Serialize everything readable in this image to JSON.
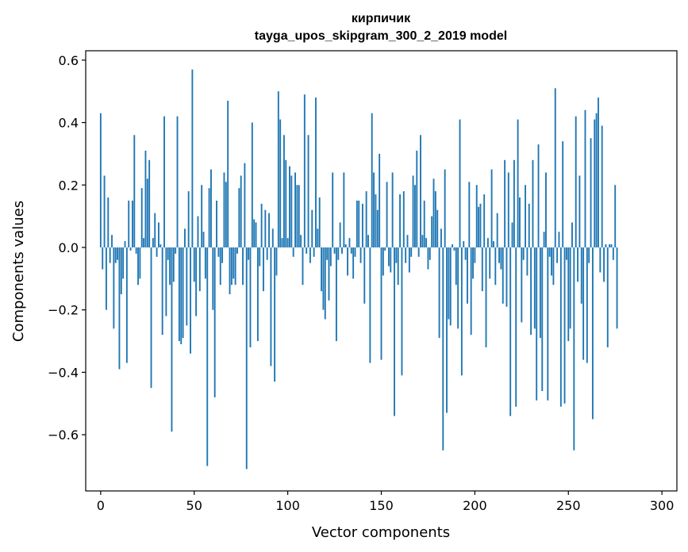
{
  "chart_data": {
    "type": "bar",
    "title_line1": "кирпичик",
    "title_line2": "tayga_upos_skipgram_300_2_2019 model",
    "xlabel": "Vector components",
    "ylabel": "Components values",
    "bar_color": "#1f77b4",
    "xlim": [
      -8,
      308
    ],
    "ylim": [
      -0.78,
      0.63
    ],
    "x_ticks": [
      0,
      50,
      100,
      150,
      200,
      250,
      300
    ],
    "x_tick_labels": [
      "0",
      "50",
      "100",
      "150",
      "200",
      "250",
      "300"
    ],
    "y_ticks": [
      -0.6,
      -0.4,
      -0.2,
      0.0,
      0.2,
      0.4,
      0.6
    ],
    "y_tick_labels": [
      "−0.6",
      "−0.4",
      "−0.2",
      "0.0",
      "0.2",
      "0.4",
      "0.6"
    ],
    "values": [
      0.43,
      -0.07,
      0.23,
      -0.2,
      0.16,
      -0.05,
      0.04,
      -0.26,
      -0.05,
      -0.04,
      -0.39,
      -0.15,
      -0.1,
      0.02,
      -0.37,
      0.15,
      -0.01,
      0.15,
      0.36,
      -0.02,
      -0.12,
      -0.1,
      0.19,
      0.03,
      0.31,
      0.22,
      0.28,
      -0.45,
      0.03,
      0.11,
      -0.03,
      0.08,
      0.01,
      -0.28,
      0.42,
      -0.22,
      -0.04,
      -0.12,
      -0.59,
      -0.11,
      -0.02,
      0.42,
      -0.3,
      -0.31,
      -0.29,
      0.06,
      -0.25,
      0.18,
      -0.34,
      0.57,
      -0.11,
      -0.22,
      0.1,
      -0.14,
      0.2,
      0.05,
      -0.1,
      -0.7,
      0.19,
      0.25,
      -0.2,
      -0.48,
      0.15,
      -0.03,
      -0.12,
      -0.05,
      0.24,
      0.21,
      0.47,
      -0.15,
      -0.12,
      -0.1,
      -0.12,
      -0.02,
      0.19,
      0.23,
      -0.12,
      0.27,
      -0.71,
      -0.04,
      -0.32,
      0.4,
      0.09,
      0.08,
      -0.3,
      -0.06,
      0.14,
      -0.14,
      0.12,
      -0.04,
      0.11,
      -0.38,
      0.06,
      -0.43,
      -0.09,
      0.5,
      0.41,
      0.03,
      0.36,
      0.28,
      0.03,
      0.26,
      0.23,
      -0.03,
      0.24,
      0.2,
      0.2,
      0.04,
      -0.12,
      0.49,
      -0.02,
      0.36,
      -0.05,
      0.12,
      -0.03,
      0.48,
      0.06,
      0.16,
      -0.14,
      -0.2,
      -0.23,
      -0.04,
      -0.17,
      -0.06,
      0.24,
      -0.02,
      -0.3,
      -0.04,
      0.08,
      -0.02,
      0.24,
      0.01,
      -0.09,
      0.03,
      -0.02,
      -0.1,
      -0.03,
      0.15,
      0.15,
      -0.05,
      0.14,
      -0.18,
      0.18,
      0.04,
      -0.37,
      0.43,
      0.24,
      0.17,
      0.12,
      0.3,
      -0.36,
      -0.09,
      -0.01,
      0.21,
      -0.06,
      -0.08,
      0.24,
      -0.54,
      -0.05,
      -0.12,
      0.17,
      -0.41,
      0.18,
      -0.05,
      0.04,
      -0.08,
      -0.03,
      0.23,
      0.2,
      0.31,
      -0.03,
      0.36,
      0.04,
      0.15,
      0.03,
      -0.07,
      -0.04,
      0.1,
      0.22,
      0.18,
      0.12,
      -0.29,
      0.06,
      -0.65,
      0.25,
      -0.53,
      -0.23,
      -0.25,
      0.01,
      -0.01,
      -0.12,
      -0.26,
      0.41,
      -0.41,
      0.02,
      -0.04,
      -0.18,
      0.21,
      -0.28,
      -0.1,
      -0.05,
      0.2,
      0.13,
      0.14,
      -0.14,
      0.17,
      -0.32,
      0.03,
      -0.1,
      0.25,
      0.02,
      -0.12,
      0.11,
      -0.05,
      -0.07,
      -0.18,
      0.28,
      -0.19,
      0.24,
      -0.54,
      0.08,
      0.28,
      -0.51,
      0.41,
      0.16,
      -0.24,
      -0.04,
      0.2,
      -0.09,
      0.14,
      -0.28,
      0.28,
      -0.26,
      -0.49,
      0.33,
      -0.29,
      -0.46,
      0.05,
      0.24,
      -0.49,
      -0.03,
      -0.09,
      -0.12,
      0.51,
      -0.05,
      0.05,
      -0.51,
      0.34,
      -0.5,
      -0.04,
      -0.3,
      -0.26,
      0.08,
      -0.65,
      0.42,
      -0.11,
      0.23,
      -0.18,
      -0.36,
      0.44,
      -0.37,
      -0.05,
      0.35,
      -0.55,
      0.41,
      0.43,
      0.48,
      -0.08,
      0.39,
      -0.11,
      0.01,
      -0.32,
      0.01,
      0.01,
      -0.04,
      0.2,
      -0.26
    ]
  }
}
